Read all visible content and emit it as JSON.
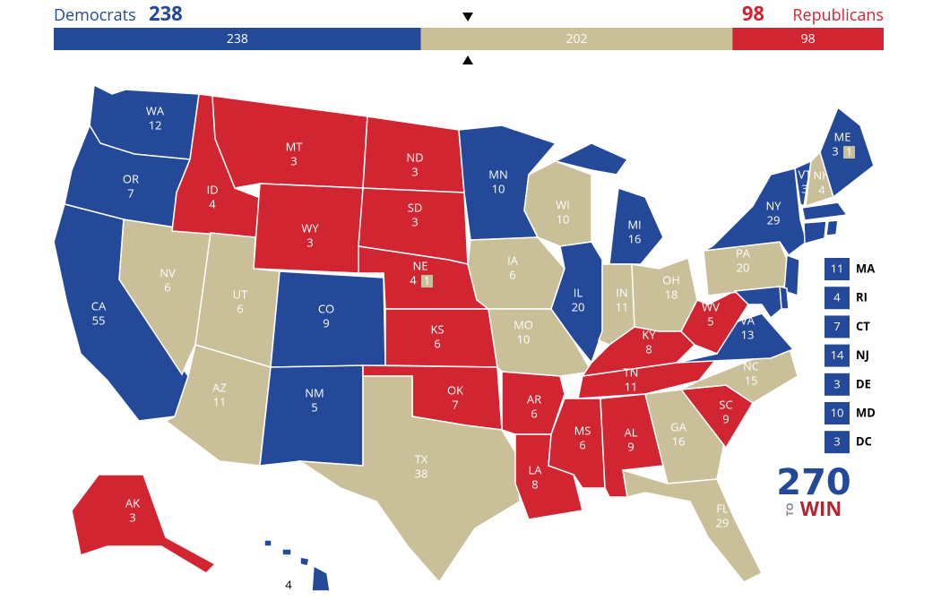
{
  "header": {
    "dem_label": "Democrats",
    "dem_total": 238,
    "rep_total": 98,
    "rep_label": "Republicans"
  },
  "colors": {
    "dem": "#244999",
    "rep": "#d22532",
    "toss": "#c9bf98"
  },
  "bar": [
    {
      "value": 238,
      "party": "dem"
    },
    {
      "value": 202,
      "party": "toss"
    },
    {
      "value": 98,
      "party": "rep"
    }
  ],
  "states": [
    {
      "abbr": "WA",
      "ev": 12,
      "party": "dem"
    },
    {
      "abbr": "OR",
      "ev": 7,
      "party": "dem"
    },
    {
      "abbr": "CA",
      "ev": 55,
      "party": "dem"
    },
    {
      "abbr": "NV",
      "ev": 6,
      "party": "toss"
    },
    {
      "abbr": "ID",
      "ev": 4,
      "party": "rep"
    },
    {
      "abbr": "MT",
      "ev": 3,
      "party": "rep"
    },
    {
      "abbr": "WY",
      "ev": 3,
      "party": "rep"
    },
    {
      "abbr": "UT",
      "ev": 6,
      "party": "toss"
    },
    {
      "abbr": "AZ",
      "ev": 11,
      "party": "toss"
    },
    {
      "abbr": "CO",
      "ev": 9,
      "party": "dem"
    },
    {
      "abbr": "NM",
      "ev": 5,
      "party": "dem"
    },
    {
      "abbr": "ND",
      "ev": 3,
      "party": "rep"
    },
    {
      "abbr": "SD",
      "ev": 3,
      "party": "rep"
    },
    {
      "abbr": "NE",
      "ev": 4,
      "party": "rep",
      "district": {
        "ev": 1,
        "party": "toss"
      }
    },
    {
      "abbr": "KS",
      "ev": 6,
      "party": "rep"
    },
    {
      "abbr": "OK",
      "ev": 7,
      "party": "rep"
    },
    {
      "abbr": "TX",
      "ev": 38,
      "party": "toss"
    },
    {
      "abbr": "MN",
      "ev": 10,
      "party": "dem"
    },
    {
      "abbr": "IA",
      "ev": 6,
      "party": "toss"
    },
    {
      "abbr": "MO",
      "ev": 10,
      "party": "toss"
    },
    {
      "abbr": "AR",
      "ev": 6,
      "party": "rep"
    },
    {
      "abbr": "LA",
      "ev": 8,
      "party": "rep"
    },
    {
      "abbr": "WI",
      "ev": 10,
      "party": "toss"
    },
    {
      "abbr": "IL",
      "ev": 20,
      "party": "dem"
    },
    {
      "abbr": "MI",
      "ev": 16,
      "party": "dem"
    },
    {
      "abbr": "IN",
      "ev": 11,
      "party": "toss"
    },
    {
      "abbr": "OH",
      "ev": 18,
      "party": "toss"
    },
    {
      "abbr": "KY",
      "ev": 8,
      "party": "rep"
    },
    {
      "abbr": "TN",
      "ev": 11,
      "party": "rep"
    },
    {
      "abbr": "MS",
      "ev": 6,
      "party": "rep"
    },
    {
      "abbr": "AL",
      "ev": 9,
      "party": "rep"
    },
    {
      "abbr": "GA",
      "ev": 16,
      "party": "toss"
    },
    {
      "abbr": "FL",
      "ev": 29,
      "party": "toss"
    },
    {
      "abbr": "SC",
      "ev": 9,
      "party": "rep"
    },
    {
      "abbr": "NC",
      "ev": 15,
      "party": "toss"
    },
    {
      "abbr": "VA",
      "ev": 13,
      "party": "dem"
    },
    {
      "abbr": "WV",
      "ev": 5,
      "party": "rep"
    },
    {
      "abbr": "PA",
      "ev": 20,
      "party": "toss"
    },
    {
      "abbr": "NY",
      "ev": 29,
      "party": "dem"
    },
    {
      "abbr": "VT",
      "ev": 3,
      "party": "dem"
    },
    {
      "abbr": "NH",
      "ev": 4,
      "party": "toss"
    },
    {
      "abbr": "ME",
      "ev": 3,
      "party": "dem",
      "district": {
        "ev": 1,
        "party": "toss"
      }
    },
    {
      "abbr": "MA",
      "ev": 11,
      "party": "dem",
      "inset": true
    },
    {
      "abbr": "RI",
      "ev": 4,
      "party": "dem",
      "inset": true
    },
    {
      "abbr": "CT",
      "ev": 7,
      "party": "dem",
      "inset": true
    },
    {
      "abbr": "NJ",
      "ev": 14,
      "party": "dem",
      "inset": true
    },
    {
      "abbr": "DE",
      "ev": 3,
      "party": "dem",
      "inset": true
    },
    {
      "abbr": "MD",
      "ev": 10,
      "party": "dem",
      "inset": true
    },
    {
      "abbr": "DC",
      "ev": 3,
      "party": "dem",
      "inset": true
    },
    {
      "abbr": "AK",
      "ev": 3,
      "party": "rep"
    },
    {
      "abbr": "HI",
      "ev": 4,
      "party": "dem"
    }
  ],
  "logo": {
    "number": "270",
    "to": "TO",
    "win": "WIN"
  }
}
